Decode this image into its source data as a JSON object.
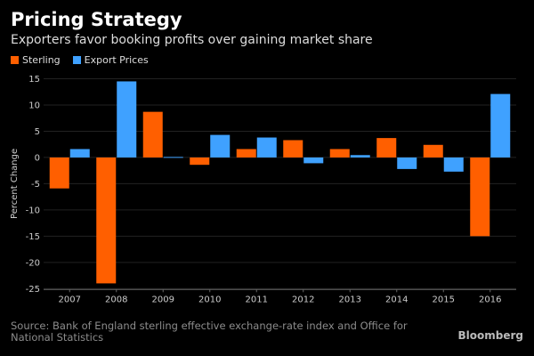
{
  "chart_data": {
    "type": "bar",
    "title": "Pricing Strategy",
    "subtitle": "Exporters favor booking profits over gaining market share",
    "ylabel": "Percent Change",
    "xlabel": "",
    "ylim": [
      -25,
      15
    ],
    "yticks": [
      15,
      10,
      5,
      0,
      -5,
      -10,
      -15,
      -20,
      -25
    ],
    "grid": true,
    "legend_placement": "top-left",
    "categories": [
      "2007",
      "2008",
      "2009",
      "2010",
      "2011",
      "2012",
      "2013",
      "2014",
      "2015",
      "2016"
    ],
    "series": [
      {
        "name": "Sterling",
        "color": "#ff5f00",
        "values": [
          -5.9,
          -24.0,
          8.7,
          -1.4,
          1.6,
          3.3,
          1.6,
          3.7,
          2.4,
          -15.0
        ]
      },
      {
        "name": "Export Prices",
        "color": "#3fa1ff",
        "values": [
          1.6,
          14.5,
          0.1,
          4.3,
          3.8,
          -1.1,
          0.45,
          -2.2,
          -2.7,
          12.1
        ]
      }
    ],
    "source": "Source: Bank of England sterling effective exchange-rate index and Office for National Statistics",
    "logo": "Bloomberg"
  }
}
